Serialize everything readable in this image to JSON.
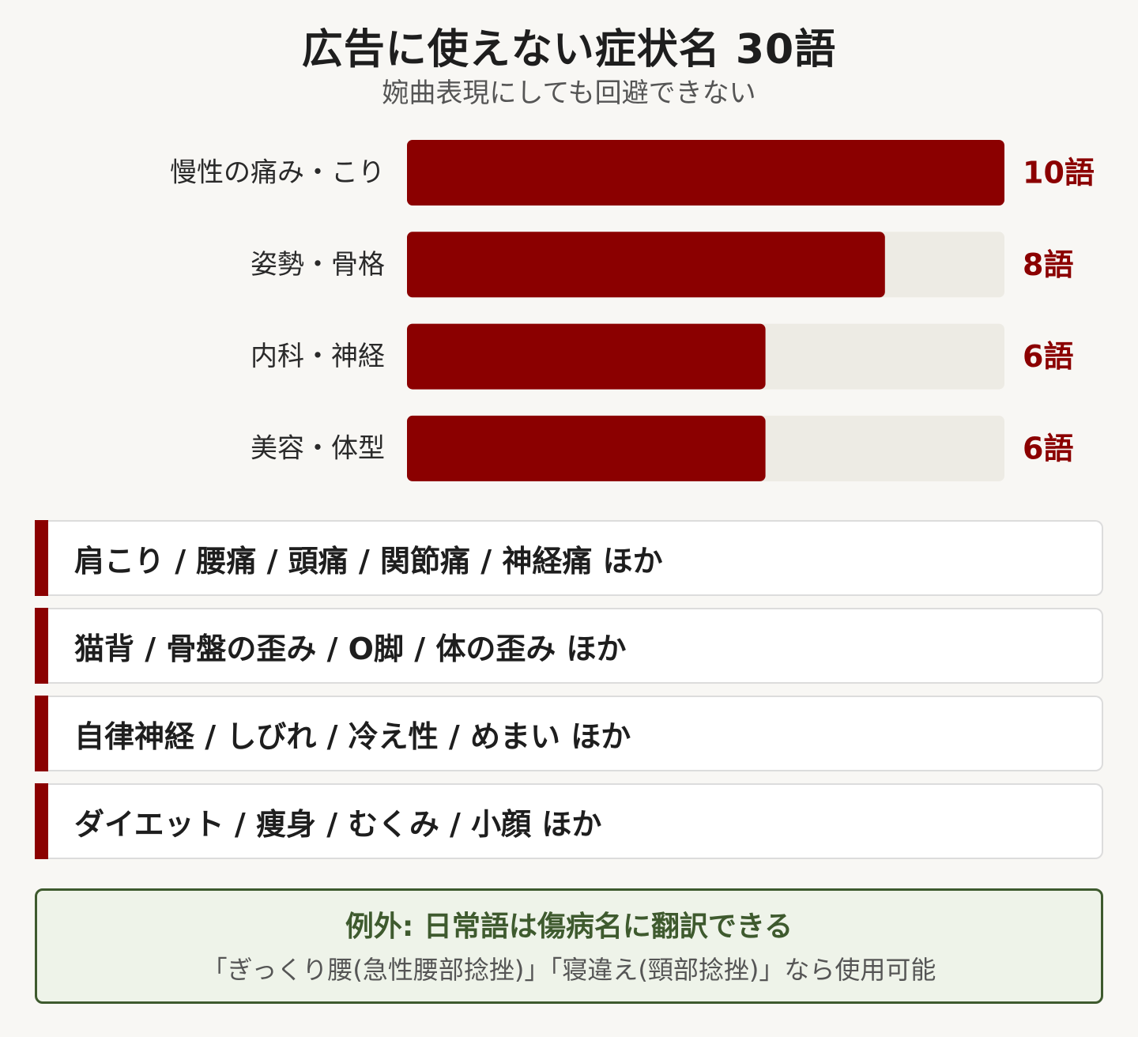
{
  "header": {
    "title": "広告に使えない症状名 30語",
    "subtitle": "婉曲表現にしても回避できない"
  },
  "colors": {
    "bar": "#8b0000",
    "track": "#edebe4",
    "accent": "#8b0000",
    "note_border": "#3e5a2e"
  },
  "chart_data": {
    "type": "bar",
    "orientation": "horizontal",
    "categories": [
      "慢性の痛み・こり",
      "姿勢・骨格",
      "内科・神経",
      "美容・体型"
    ],
    "values": [
      10,
      8,
      6,
      6
    ],
    "value_labels": [
      "10語",
      "8語",
      "6語",
      "6語"
    ],
    "xlim": [
      0,
      10
    ],
    "grid": false
  },
  "examples": [
    "肩こり / 腰痛 / 頭痛 / 関節痛 / 神経痛 ほか",
    "猫背 / 骨盤の歪み / O脚 / 体の歪み ほか",
    "自律神経 / しびれ / 冷え性 / めまい ほか",
    "ダイエット / 痩身 / むくみ / 小顔 ほか"
  ],
  "note": {
    "title": "例外: 日常語は傷病名に翻訳できる",
    "body": "「ぎっくり腰(急性腰部捻挫)」「寝違え(頸部捻挫)」なら使用可能"
  }
}
